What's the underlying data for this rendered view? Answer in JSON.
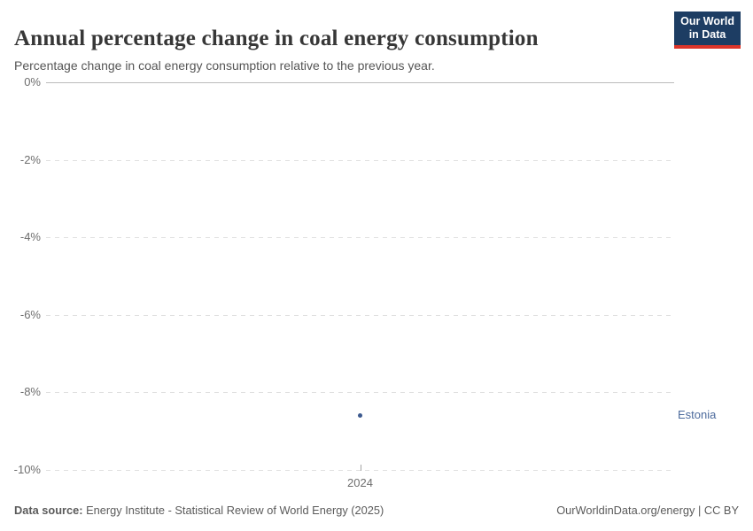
{
  "header": {
    "title": "Annual percentage change in coal energy consumption",
    "subtitle": "Percentage change in coal energy consumption relative to the previous year.",
    "logo": {
      "line1": "Our World",
      "line2": "in Data"
    }
  },
  "chart_data": {
    "type": "scatter",
    "title": "Annual percentage change in coal energy consumption",
    "x": [
      2024
    ],
    "series": [
      {
        "name": "Estonia",
        "values": [
          -8.6
        ],
        "color": "#3d5a8f",
        "label_color": "#4c6a9c"
      }
    ],
    "xlabel": "",
    "ylabel": "",
    "ylim": [
      -10,
      0
    ],
    "yticks": [
      {
        "value": 0,
        "label": "0%"
      },
      {
        "value": -2,
        "label": "-2%"
      },
      {
        "value": -4,
        "label": "-4%"
      },
      {
        "value": -6,
        "label": "-6%"
      },
      {
        "value": -8,
        "label": "-8%"
      },
      {
        "value": -10,
        "label": "-10%"
      }
    ],
    "xticks": [
      {
        "value": 2024,
        "label": "2024"
      }
    ],
    "grid": "horizontal-dashed",
    "legend_position": "right-edge-entity-label"
  },
  "colors": {
    "accent_point": "#3d5a8f",
    "entity_label": "#4c6a9c",
    "logo_background": "#1d3d63",
    "logo_underline": "#dc352a",
    "zero_gridline": "#bbbbbb",
    "dashed_gridline": "#e0e0e0"
  },
  "footer": {
    "source_label": "Data source:",
    "source_text": "Energy Institute - Statistical Review of World Energy (2025)",
    "credit": "OurWorldinData.org/energy | CC BY"
  }
}
